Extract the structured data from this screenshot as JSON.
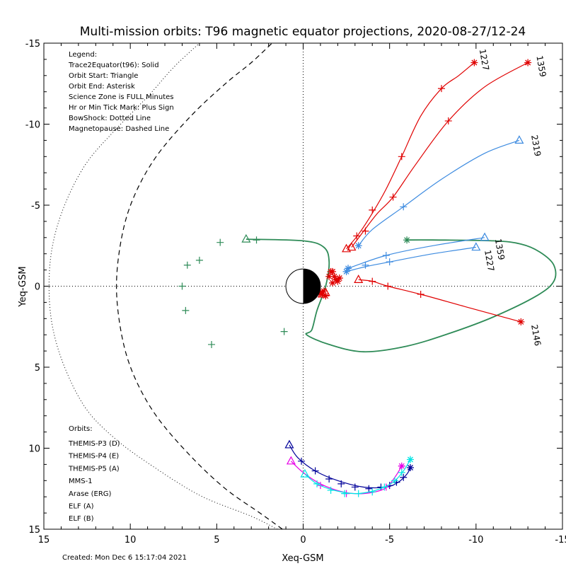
{
  "chart_data": {
    "type": "line",
    "title": "Multi-mission orbits: T96 magnetic equator projections, 2020-08-27/12-24",
    "xlabel": "Xeq-GSM",
    "ylabel": "Yeq-GSM",
    "xlim": [
      15,
      -15
    ],
    "ylim": [
      -15,
      15
    ],
    "x_ticks": [
      15,
      10,
      5,
      0,
      -5,
      -10,
      -15
    ],
    "x_tick_labels": [
      "15",
      "10",
      "5",
      "0",
      "-5",
      "-10",
      "-15"
    ],
    "y_ticks": [
      -15,
      -10,
      -5,
      0,
      5,
      10,
      15
    ],
    "y_tick_labels": [
      "-15",
      "-10",
      "-5",
      "0",
      "5",
      "10",
      "15"
    ],
    "grid": false,
    "legend_text": [
      "Legend:",
      "Trace2Equator(t96): Solid",
      "Orbit Start: Triangle",
      "Orbit End: Asterisk",
      "Science Zone is FULL Minutes",
      "Hr or Min Tick Mark: Plus Sign",
      "BowShock: Dotted Line",
      "Magnetopause: Dashed Line"
    ],
    "orbits_title": "Orbits:",
    "orbits": [
      {
        "label": "THEMIS-P3 (D)",
        "color": "#00e5e5"
      },
      {
        "label": "THEMIS-P4 (E)",
        "color": "#000099"
      },
      {
        "label": "THEMIS-P5 (A)",
        "color": "#e600e6"
      },
      {
        "label": "MMS-1",
        "color": "#000000"
      },
      {
        "label": "Arase (ERG)",
        "color": "#2e8b57"
      },
      {
        "label": "ELF (A)",
        "color": "#3d8be0"
      },
      {
        "label": "ELF (B)",
        "color": "#e00000"
      }
    ],
    "created_text": "Created: Mon Dec  6 15:17:04 2021",
    "bow_shock": [
      [
        1.5,
        15
      ],
      [
        3,
        14.2
      ],
      [
        6,
        12.9
      ],
      [
        9,
        10.9
      ],
      [
        11,
        9.3
      ],
      [
        12.6,
        7.5
      ],
      [
        13.8,
        5
      ],
      [
        14.5,
        2.5
      ],
      [
        14.7,
        0
      ],
      [
        14.5,
        -2.5
      ],
      [
        13.8,
        -5
      ],
      [
        12.6,
        -7.5
      ],
      [
        11,
        -9.5
      ],
      [
        9,
        -11.7
      ],
      [
        7.5,
        -13.5
      ],
      [
        6,
        -15
      ]
    ],
    "magnetopause": [
      [
        1.2,
        15
      ],
      [
        2.5,
        14
      ],
      [
        4.5,
        12.5
      ],
      [
        6.5,
        10.5
      ],
      [
        8.5,
        8
      ],
      [
        9.8,
        5.5
      ],
      [
        10.5,
        3
      ],
      [
        10.8,
        0
      ],
      [
        10.5,
        -3
      ],
      [
        9.8,
        -5.5
      ],
      [
        8.5,
        -8
      ],
      [
        6.5,
        -10.5
      ],
      [
        4.5,
        -12.5
      ],
      [
        3,
        -13.8
      ],
      [
        1.8,
        -15
      ]
    ],
    "series": [
      {
        "name": "Arase (ERG)",
        "color": "#2e8b57",
        "points": [
          [
            3.3,
            -2.9
          ],
          [
            0,
            -2.8
          ],
          [
            -1.2,
            -2.4
          ],
          [
            -1.5,
            -1.5
          ],
          [
            -1.3,
            0
          ],
          [
            -0.8,
            1.5
          ],
          [
            -0.5,
            2.7
          ],
          [
            -0.2,
            3
          ],
          [
            -1.5,
            3.6
          ],
          [
            -3.5,
            4.05
          ],
          [
            -6,
            3.7
          ],
          [
            -8.5,
            2.9
          ],
          [
            -11,
            1.9
          ],
          [
            -13.5,
            0.6
          ],
          [
            -14.5,
            -0.3
          ],
          [
            -14.5,
            -1.3
          ],
          [
            -13.7,
            -2.1
          ],
          [
            -12.6,
            -2.6
          ],
          [
            -11,
            -2.8
          ],
          [
            -7.5,
            -2.85
          ],
          [
            -6,
            -2.85
          ]
        ],
        "start": [
          3.3,
          -2.9
        ],
        "end": [
          -6,
          -2.85
        ],
        "ticks": [
          [
            2.7,
            -2.85
          ],
          [
            4.8,
            -2.7
          ],
          [
            6.7,
            -1.3
          ],
          [
            7,
            0
          ],
          [
            6.8,
            1.5
          ],
          [
            5.3,
            3.6
          ],
          [
            1.1,
            2.8
          ],
          [
            6,
            -1.6
          ]
        ],
        "curve_x": [
          3.3,
          0,
          -1.2,
          -1.5,
          -1.3,
          -0.8,
          -0.5,
          -0.2,
          -1.5,
          -3.5,
          -6,
          -8.5,
          -11,
          -13.5,
          -14.5,
          -14.5,
          -13.7,
          -12.6,
          -11,
          -7.5,
          -6
        ],
        "note": ""
      },
      {
        "name": "ELF (B) 1227",
        "color": "#e00000",
        "points": [
          [
            -2.5,
            -2.3
          ],
          [
            -3.2,
            -3.2
          ],
          [
            -4,
            -4.5
          ],
          [
            -4.8,
            -6
          ],
          [
            -5.7,
            -8
          ],
          [
            -6.8,
            -10.5
          ],
          [
            -8,
            -12.2
          ],
          [
            -9,
            -13
          ],
          [
            -9.9,
            -13.8
          ]
        ],
        "start": [
          -2.5,
          -2.3
        ],
        "end": [
          -9.9,
          -13.8
        ],
        "ticks": [
          [
            -3.1,
            -3.1
          ],
          [
            -4,
            -4.7
          ],
          [
            -5.7,
            -8
          ],
          [
            -8,
            -12.2
          ]
        ],
        "label": "1227",
        "label_at": [
          -10.2,
          -14.6
        ]
      },
      {
        "name": "ELF (B) 1359",
        "color": "#e00000",
        "points": [
          [
            -2.8,
            -2.4
          ],
          [
            -3.5,
            -3.4
          ],
          [
            -4.3,
            -4.5
          ],
          [
            -5.2,
            -5.5
          ],
          [
            -6.5,
            -7.5
          ],
          [
            -8.4,
            -10.2
          ],
          [
            -10.5,
            -12.3
          ],
          [
            -13,
            -13.8
          ]
        ],
        "start": [
          -2.8,
          -2.4
        ],
        "end": [
          -13,
          -13.8
        ],
        "ticks": [
          [
            -3.6,
            -3.4
          ],
          [
            -5.2,
            -5.5
          ],
          [
            -8.4,
            -10.2
          ]
        ],
        "label": "1359",
        "label_at": [
          -13.5,
          -14.2
        ]
      },
      {
        "name": "ELF (A) 2319",
        "color": "#3d8be0",
        "points": [
          [
            -3.2,
            -2.5
          ],
          [
            -4,
            -3.5
          ],
          [
            -5.8,
            -4.9
          ],
          [
            -8,
            -6.6
          ],
          [
            -10.5,
            -8.2
          ],
          [
            -12.5,
            -9
          ]
        ],
        "start": [
          -12.5,
          -9
        ],
        "end": [
          -3.2,
          -2.5
        ],
        "ticks": [
          [
            -5.8,
            -4.9
          ]
        ],
        "label": "2319",
        "label_at": [
          -13.2,
          -9.3
        ]
      },
      {
        "name": "ELF (A) 1359 upper",
        "color": "#3d8be0",
        "points": [
          [
            -2.6,
            -1.1
          ],
          [
            -4.8,
            -1.9
          ],
          [
            -7.5,
            -2.5
          ],
          [
            -10.5,
            -3
          ]
        ],
        "start": [
          -10.5,
          -3
        ],
        "end": [
          -2.6,
          -1.1
        ],
        "ticks": [
          [
            -4.8,
            -1.9
          ]
        ],
        "label": "1359",
        "label_at": [
          -11.1,
          -2.9
        ]
      },
      {
        "name": "ELF (A) 1227 lower",
        "color": "#3d8be0",
        "points": [
          [
            -2.5,
            -0.9
          ],
          [
            -3.6,
            -1.2
          ],
          [
            -5,
            -1.5
          ],
          [
            -7.5,
            -2
          ],
          [
            -10,
            -2.4
          ]
        ],
        "start": [
          -10,
          -2.4
        ],
        "end": [
          -2.5,
          -0.9
        ],
        "ticks": [
          [
            -3.6,
            -1.3
          ],
          [
            -5,
            -1.5
          ]
        ],
        "label": "1227",
        "label_at": [
          -10.5,
          -2.2
        ]
      },
      {
        "name": "ELF (B) 2146",
        "color": "#e00000",
        "points": [
          [
            -3.2,
            -0.4
          ],
          [
            -4,
            -0.3
          ],
          [
            -4.9,
            0
          ],
          [
            -6.8,
            0.5
          ],
          [
            -9.5,
            1.3
          ],
          [
            -12.6,
            2.2
          ]
        ],
        "start": [
          -3.2,
          -0.4
        ],
        "end": [
          -12.6,
          2.2
        ],
        "ticks": [
          [
            -4,
            -0.3
          ],
          [
            -4.9,
            0
          ],
          [
            -6.8,
            0.5
          ]
        ],
        "label": "2146",
        "label_at": [
          -13.2,
          2.4
        ]
      },
      {
        "name": "THEMIS-P4 (E)",
        "color": "#000099",
        "points": [
          [
            0.8,
            9.8
          ],
          [
            0.3,
            10.6
          ],
          [
            -0.7,
            11.4
          ],
          [
            -2,
            12
          ],
          [
            -3.5,
            12.4
          ],
          [
            -4.8,
            12.4
          ],
          [
            -5.5,
            12.1
          ],
          [
            -6,
            11.6
          ],
          [
            -6.2,
            11.2
          ]
        ],
        "start": [
          0.8,
          9.8
        ],
        "end": [
          -6.2,
          11.2
        ],
        "ticks": [
          [
            0.1,
            10.8
          ],
          [
            -0.7,
            11.4
          ],
          [
            -1.5,
            11.9
          ],
          [
            -2.2,
            12.2
          ],
          [
            -3,
            12.4
          ],
          [
            -3.8,
            12.5
          ],
          [
            -4.5,
            12.4
          ],
          [
            -5,
            12.3
          ],
          [
            -5.4,
            12.1
          ],
          [
            -5.8,
            11.8
          ]
        ]
      },
      {
        "name": "THEMIS-P5 (A)",
        "color": "#e600e6",
        "points": [
          [
            0.7,
            10.8
          ],
          [
            0,
            11.5
          ],
          [
            -1,
            12.2
          ],
          [
            -2.3,
            12.7
          ],
          [
            -3.5,
            12.8
          ],
          [
            -4.7,
            12.5
          ],
          [
            -5.3,
            11.8
          ],
          [
            -5.7,
            11.1
          ]
        ],
        "start": [
          0.7,
          10.8
        ],
        "end": [
          -5.7,
          11.1
        ],
        "ticks": [
          [
            -1,
            12.3
          ],
          [
            -2.5,
            12.8
          ],
          [
            -4.8,
            12.4
          ]
        ]
      },
      {
        "name": "THEMIS-P3 (D)",
        "color": "#00e5e5",
        "points": [
          [
            -0.1,
            11.6
          ],
          [
            -0.8,
            12.2
          ],
          [
            -1.8,
            12.6
          ],
          [
            -3,
            12.8
          ],
          [
            -4.2,
            12.6
          ],
          [
            -5.2,
            12.1
          ],
          [
            -5.8,
            11.4
          ],
          [
            -6.2,
            10.7
          ]
        ],
        "start": [
          -0.1,
          11.6
        ],
        "end": [
          -6.2,
          10.7
        ],
        "ticks": [
          [
            -0.8,
            12.2
          ],
          [
            -1.6,
            12.6
          ],
          [
            -2.4,
            12.8
          ],
          [
            -3.2,
            12.8
          ],
          [
            -4,
            12.7
          ],
          [
            -4.7,
            12.4
          ],
          [
            -5.3,
            12
          ],
          [
            -5.7,
            11.5
          ]
        ]
      }
    ],
    "earth": {
      "radius": 1
    },
    "red_cluster_points": [
      [
        -1.2,
        0.3
      ],
      [
        -1.1,
        0.5
      ],
      [
        -1,
        0.4
      ],
      [
        -1.3,
        0.6
      ],
      [
        -1.6,
        -0.9
      ],
      [
        -1.8,
        -0.6
      ],
      [
        -1.9,
        -0.4
      ],
      [
        -2,
        -0.3
      ],
      [
        -1.7,
        -0.2
      ],
      [
        -2.1,
        -0.5
      ],
      [
        -1.5,
        -0.6
      ],
      [
        -1.7,
        -0.9
      ]
    ]
  }
}
